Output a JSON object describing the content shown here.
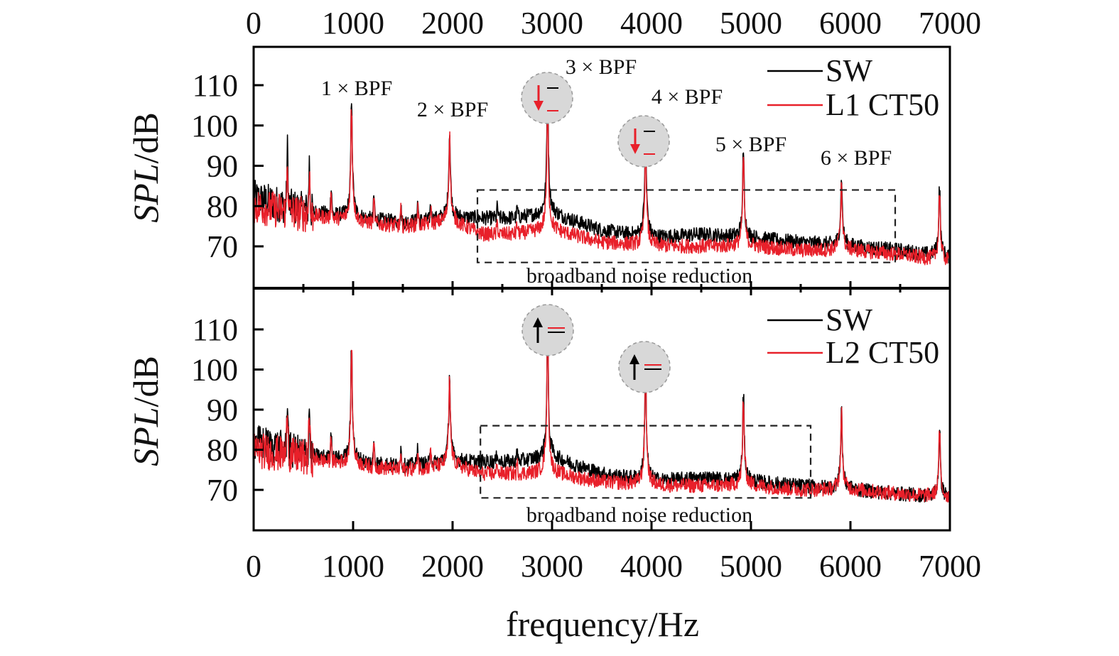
{
  "figure": {
    "xlabel": "frequency/Hz",
    "ylabel_italic": "SPL",
    "ylabel_unit": "/dB",
    "x_ticks": [
      "0",
      "1000",
      "2000",
      "3000",
      "4000",
      "5000",
      "6000",
      "7000"
    ],
    "y_ticks": [
      "70",
      "80",
      "90",
      "100",
      "110"
    ],
    "colors": {
      "SW": "#000000",
      "CT50": "#e8202a",
      "circle_fill": "#d8d8d8",
      "box_line": "#222222"
    }
  },
  "chart_data": [
    {
      "type": "line",
      "panel": "top",
      "xlabel": "frequency/Hz",
      "ylabel": "SPL/dB",
      "xlim": [
        0,
        7000
      ],
      "ylim": [
        61,
        118
      ],
      "x_scale": "linear",
      "grid": false,
      "legend_position": "top-right",
      "series": [
        {
          "name": "SW",
          "color": "#000000"
        },
        {
          "name": "L1 CT50",
          "color": "#e8202a"
        }
      ],
      "tonal_peaks": [
        {
          "label": "1 × BPF",
          "freq": 985,
          "SW": 104,
          "CT50": 103
        },
        {
          "label": "2 × BPF",
          "freq": 1970,
          "SW": 98,
          "CT50": 97
        },
        {
          "label": "3 × BPF",
          "freq": 2955,
          "SW": 108,
          "CT50": 103
        },
        {
          "label": "4 × BPF",
          "freq": 3940,
          "SW": 99,
          "CT50": 96
        },
        {
          "label": "5 × BPF",
          "freq": 4925,
          "SW": 92,
          "CT50": 91
        },
        {
          "label": "6 × BPF",
          "freq": 5910,
          "SW": 87,
          "CT50": 86
        },
        {
          "label": "",
          "freq": 6895,
          "SW": 84,
          "CT50": 83
        }
      ],
      "broadband_SW": {
        "x": [
          0,
          500,
          1000,
          1500,
          2000,
          2300,
          2600,
          3000,
          3500,
          4000,
          4500,
          5000,
          5500,
          6000,
          6500,
          7000
        ],
        "y": [
          82,
          79,
          77,
          76,
          77,
          77,
          77,
          78,
          74,
          72,
          73,
          72,
          71,
          70,
          69,
          67
        ]
      },
      "broadband_CT50": {
        "x": [
          0,
          500,
          1000,
          1500,
          2000,
          2300,
          2600,
          3000,
          3500,
          4000,
          4500,
          5000,
          5500,
          6000,
          6500,
          7000
        ],
        "y": [
          80,
          78,
          76,
          75,
          76,
          73,
          73,
          74,
          71,
          70,
          70,
          70,
          69,
          69,
          68,
          66
        ]
      },
      "annotation_box": {
        "label": "broadband noise reduction",
        "x_range": [
          2250,
          6450
        ],
        "y_range": [
          66,
          84
        ]
      },
      "trend_markers": [
        {
          "freq": 2955,
          "direction": "down"
        },
        {
          "freq": 3940,
          "direction": "down"
        }
      ]
    },
    {
      "type": "line",
      "panel": "bottom",
      "xlabel": "frequency/Hz",
      "ylabel": "SPL/dB",
      "xlim": [
        0,
        7000
      ],
      "ylim": [
        61,
        118
      ],
      "x_scale": "linear",
      "grid": false,
      "legend_position": "top-right",
      "series": [
        {
          "name": "SW",
          "color": "#000000"
        },
        {
          "name": "L2 CT50",
          "color": "#e8202a"
        }
      ],
      "tonal_peaks": [
        {
          "freq": 985,
          "SW": 104,
          "CT50": 103
        },
        {
          "freq": 1970,
          "SW": 98,
          "CT50": 97
        },
        {
          "freq": 2955,
          "SW": 107,
          "CT50": 109
        },
        {
          "freq": 3940,
          "SW": 99,
          "CT50": 101
        },
        {
          "freq": 4925,
          "SW": 92,
          "CT50": 91
        },
        {
          "freq": 5910,
          "SW": 90,
          "CT50": 89
        },
        {
          "freq": 6895,
          "SW": 84,
          "CT50": 83
        }
      ],
      "broadband_SW": {
        "x": [
          0,
          500,
          1000,
          1500,
          2000,
          2300,
          2600,
          3000,
          3500,
          4000,
          4500,
          5000,
          5500,
          6000,
          6500,
          7000
        ],
        "y": [
          82,
          79,
          77,
          76,
          77,
          77,
          77,
          78,
          74,
          72,
          73,
          72,
          71,
          70,
          69,
          68
        ]
      },
      "broadband_CT50": {
        "x": [
          0,
          500,
          1000,
          1500,
          2000,
          2300,
          2600,
          3000,
          3500,
          4000,
          4500,
          5000,
          5500,
          6000,
          6500,
          7000
        ],
        "y": [
          80,
          78,
          76,
          75,
          76,
          74,
          74,
          74,
          72,
          71,
          71,
          71,
          70,
          70,
          69,
          68
        ]
      },
      "annotation_box": {
        "label": "broadband noise reduction",
        "x_range": [
          2280,
          5600
        ],
        "y_range": [
          68,
          86
        ]
      },
      "trend_markers": [
        {
          "freq": 2955,
          "direction": "up"
        },
        {
          "freq": 3940,
          "direction": "up"
        }
      ]
    }
  ]
}
